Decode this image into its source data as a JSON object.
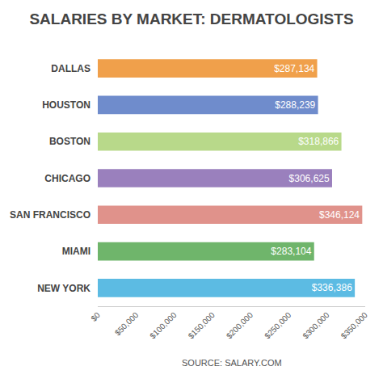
{
  "chart_data": {
    "type": "bar",
    "orientation": "horizontal",
    "title": "SALARIES BY MARKET: DERMATOLOGISTS",
    "annotations": [
      "SOURCE: SALARY.COM"
    ],
    "categories": [
      "DALLAS",
      "HOUSTON",
      "BOSTON",
      "CHICAGO",
      "SAN FRANCISCO",
      "MIAMI",
      "NEW YORK"
    ],
    "values": [
      287134,
      288239,
      318866,
      306625,
      346124,
      283104,
      336386
    ],
    "value_labels": [
      "$287,134",
      "$288,239",
      "$318,866",
      "$306,625",
      "$346,124",
      "$283,104",
      "$336,386"
    ],
    "data_labels": true,
    "colors": [
      "#f0a04b",
      "#6f8ccc",
      "#b8d98a",
      "#9a80bd",
      "#e0928b",
      "#6fb56b",
      "#5cbbe3"
    ],
    "xlim": [
      0,
      350000
    ],
    "xticks": [
      {
        "value": 0,
        "label": "$0"
      },
      {
        "value": 50000,
        "label": "$50,000"
      },
      {
        "value": 100000,
        "label": "$100,000"
      },
      {
        "value": 150000,
        "label": "$150,000"
      },
      {
        "value": 200000,
        "label": "$200,000"
      },
      {
        "value": 250000,
        "label": "$250,000"
      },
      {
        "value": 300000,
        "label": "$300,000"
      },
      {
        "value": 350000,
        "label": "$350,000"
      }
    ],
    "grid": false
  }
}
